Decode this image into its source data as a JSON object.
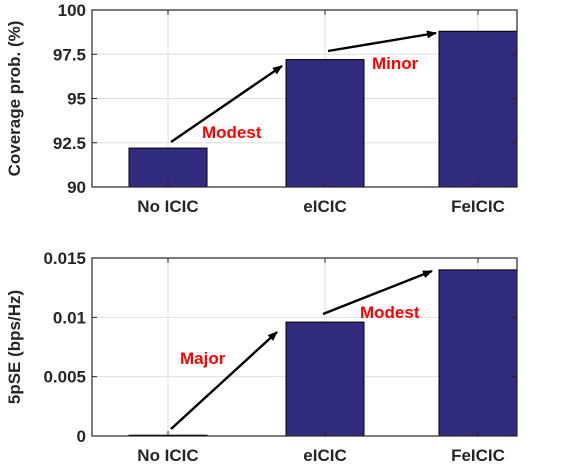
{
  "chart_data": [
    {
      "type": "bar",
      "categories": [
        "No ICIC",
        "eICIC",
        "FeICIC"
      ],
      "values": [
        92.2,
        97.2,
        98.8
      ],
      "ylabel": "Coverage prob. (%)",
      "ylim": [
        90,
        100
      ],
      "yticks": [
        "90",
        "92.5",
        "95",
        "97.5",
        "100"
      ],
      "ytick_values": [
        90,
        92.5,
        95,
        97.5,
        100
      ],
      "grid": true,
      "bar_color": "#312b7e",
      "annotations": [
        {
          "text": "Modest",
          "color": "#ff0000"
        },
        {
          "text": "Minor",
          "color": "#ff0000"
        }
      ]
    },
    {
      "type": "bar",
      "categories": [
        "No ICIC",
        "eICIC",
        "FeICIC"
      ],
      "values": [
        0.0,
        0.0096,
        0.014
      ],
      "ylabel": "5pSE (bps/Hz)",
      "ylim": [
        0,
        0.015
      ],
      "yticks": [
        "0",
        "0.005",
        "0.01",
        "0.015"
      ],
      "ytick_values": [
        0,
        0.005,
        0.01,
        0.015
      ],
      "grid": true,
      "bar_color": "#312b7e",
      "annotations": [
        {
          "text": "Major",
          "color": "#ff0000"
        },
        {
          "text": "Modest",
          "color": "#ff0000"
        }
      ]
    }
  ]
}
